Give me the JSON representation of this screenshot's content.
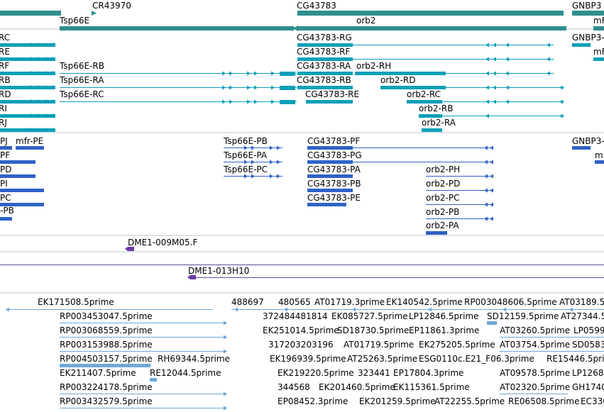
{
  "colors": {
    "gene": "#2e8f8f",
    "transcript": "#0d9fb8",
    "protein": "#2f62c8",
    "clone": "#6a3aa5",
    "est": "#6fa8d8",
    "separator": "#b8c4d6",
    "clone_line": "#5a4e9a"
  },
  "genes": {
    "cr43970": "CR43970",
    "cg43783": "CG43783",
    "gnbp3": "GNBP3",
    "tsp66e": "Tsp66E",
    "orb2": "orb2",
    "mfr_edge": "mF"
  },
  "transcripts": {
    "left": [
      "RC",
      "RE",
      "RF",
      "RB",
      "RD",
      "RI",
      "RJ"
    ],
    "tsp66e": [
      "Tsp66E-RB",
      "Tsp66E-RA",
      "Tsp66E-RC"
    ],
    "cg43783": [
      "CG43783-RG",
      "CG43783-RF",
      "CG43783-RA",
      "CG43783-RB",
      "CG43783-RE"
    ],
    "orb2": [
      "orb2-RH",
      "orb2-RD",
      "orb2-RC",
      "orb2-RB",
      "orb2-RA"
    ],
    "gnbp3": "GNBP3-",
    "mfr_edge": "mF"
  },
  "proteins": {
    "left": [
      "PJ",
      "PF",
      "PD",
      "PI",
      "PC",
      "-PB"
    ],
    "mfr_pe": "mfr-PE",
    "tsp66e": [
      "Tsp66E-PB",
      "Tsp66E-PA",
      "Tsp66E-PC"
    ],
    "cg43783": [
      "CG43783-PF",
      "CG43783-PG",
      "CG43783-PA",
      "CG43783-PB",
      "CG43783-PE"
    ],
    "orb2": [
      "orb2-PH",
      "orb2-PD",
      "orb2-PC",
      "orb2-PB",
      "orb2-PA"
    ],
    "gnbp3": "GNBP3-",
    "m_edge": "m"
  },
  "clones": {
    "c1": "DME1-009M05.F",
    "c2": "DME1-013H10"
  },
  "ests": [
    "EK171508.5prime",
    "488697",
    "480565",
    "AT01719.3prime",
    "EK140542.5prime",
    "RP003048606.5prime",
    "AT03189.5",
    "RP003453047.5prime",
    "372484481814",
    "EK085727.5prime",
    "LP12846.5prime",
    "SD12159.5prime",
    "AT27344.5",
    "RP003068559.5prime",
    "EK251014.5prime",
    "SD18730.5prime",
    "EP11861.3prime",
    "AT03260.5prime",
    "LP0599",
    "RP003153988.5prime",
    "317203203196",
    "AT01719.5prime",
    "EK275205.5prime",
    "AT03754.5prime",
    "SD0583",
    "RP004503157.5prime",
    "RH69344.5prime",
    "EK196939.5prime",
    "AT25263.5prime",
    "ESG0110c.E21_F06.3prime",
    "RE15446.5prime",
    "EK211407.5prime",
    "RE12044.5prime",
    "EK219220.5prime",
    "323441",
    "EP17804.3prime",
    "AT09578.5prime",
    "LP1268",
    "RP003224178.5prime",
    "344568",
    "EK201460.5prime",
    "EK115361.5prime",
    "AT02320.5prime",
    "GH1740",
    "RP003432579.5prime",
    "EP08452.3prime",
    "EK201259.5prime",
    "AT22255.5prime",
    "RE06508.5prime",
    "EC330"
  ]
}
